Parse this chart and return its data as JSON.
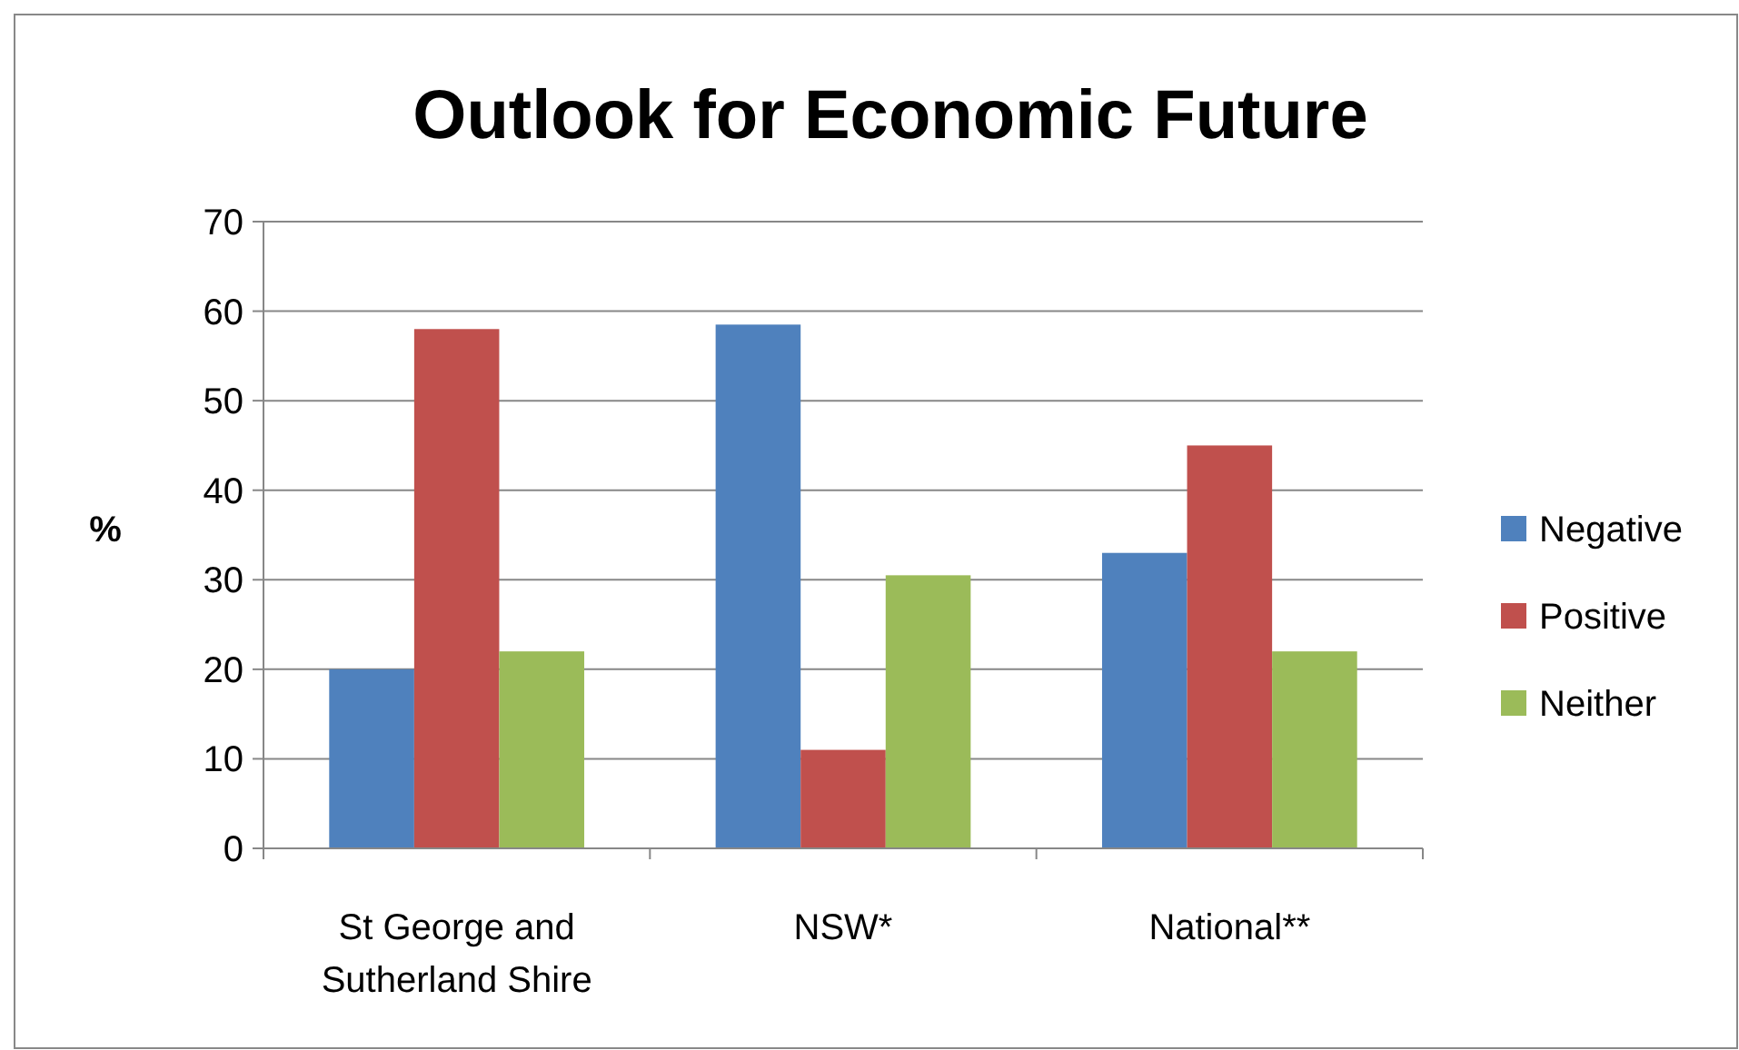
{
  "chart_data": {
    "type": "bar",
    "title": "Outlook for Economic Future",
    "ylabel": "%",
    "categories": [
      "St George and\nSutherland Shire",
      "NSW*",
      "National**"
    ],
    "series": [
      {
        "name": "Negative",
        "color": "#4f81bd",
        "values": [
          20,
          58.5,
          33
        ]
      },
      {
        "name": "Positive",
        "color": "#c0504d",
        "values": [
          58,
          11,
          45
        ]
      },
      {
        "name": "Neither",
        "color": "#9bbb59",
        "values": [
          22,
          30.5,
          22
        ]
      }
    ],
    "ylim": [
      0,
      70
    ],
    "yticks": [
      0,
      10,
      20,
      30,
      40,
      50,
      60,
      70
    ],
    "grid": "y",
    "legend": "right"
  }
}
